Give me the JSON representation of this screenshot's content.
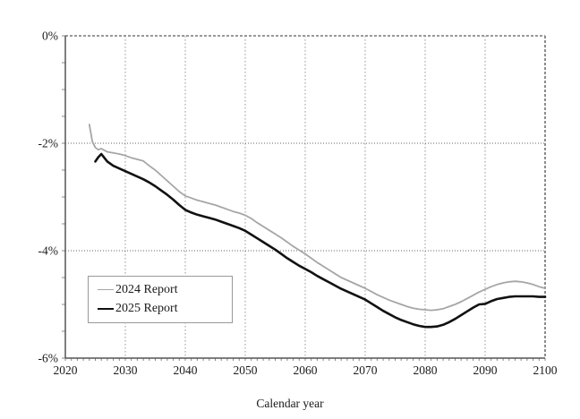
{
  "figure": {
    "background": "#ffffff",
    "xlabel": "Calendar year"
  },
  "chart_data": {
    "type": "line",
    "title": "",
    "xlabel": "Calendar year",
    "ylabel": "",
    "xlim": [
      2020,
      2100
    ],
    "ylim": [
      -6,
      0
    ],
    "x_ticks": [
      2020,
      2030,
      2040,
      2050,
      2060,
      2070,
      2080,
      2090,
      2100
    ],
    "x_minor_step": 1,
    "y_ticks": [
      {
        "value": 0,
        "label": "0%"
      },
      {
        "value": -2,
        "label": "-2%"
      },
      {
        "value": -4,
        "label": "-4%"
      },
      {
        "value": -6,
        "label": "-6%"
      }
    ],
    "y_minor_step": 0.5,
    "grid": {
      "vertical_color": "#b3b3b3",
      "horizontal_color": "#666666",
      "top_border_color": "#999999",
      "right_border_color": "#8c8c8c",
      "axis_color": "#555555",
      "tick_color": "#888888"
    },
    "legend_position": "lower-left",
    "series": [
      {
        "name": "2024 Report",
        "color": "#a6a6a6",
        "stroke_width": 1.8,
        "points": [
          [
            2024,
            -1.65
          ],
          [
            2024.5,
            -1.97
          ],
          [
            2025,
            -2.08
          ],
          [
            2025.5,
            -2.12
          ],
          [
            2026,
            -2.1
          ],
          [
            2026.5,
            -2.13
          ],
          [
            2027,
            -2.16
          ],
          [
            2028,
            -2.18
          ],
          [
            2029,
            -2.2
          ],
          [
            2030,
            -2.23
          ],
          [
            2031,
            -2.27
          ],
          [
            2032,
            -2.3
          ],
          [
            2033,
            -2.33
          ],
          [
            2034,
            -2.42
          ],
          [
            2035,
            -2.5
          ],
          [
            2036,
            -2.6
          ],
          [
            2037,
            -2.7
          ],
          [
            2038,
            -2.8
          ],
          [
            2039,
            -2.9
          ],
          [
            2040,
            -2.98
          ],
          [
            2041,
            -3.02
          ],
          [
            2042,
            -3.06
          ],
          [
            2043,
            -3.09
          ],
          [
            2044,
            -3.12
          ],
          [
            2045,
            -3.15
          ],
          [
            2046,
            -3.19
          ],
          [
            2047,
            -3.23
          ],
          [
            2048,
            -3.27
          ],
          [
            2049,
            -3.3
          ],
          [
            2050,
            -3.34
          ],
          [
            2051,
            -3.4
          ],
          [
            2052,
            -3.48
          ],
          [
            2053,
            -3.55
          ],
          [
            2054,
            -3.62
          ],
          [
            2055,
            -3.69
          ],
          [
            2056,
            -3.76
          ],
          [
            2057,
            -3.84
          ],
          [
            2058,
            -3.92
          ],
          [
            2059,
            -3.99
          ],
          [
            2060,
            -4.06
          ],
          [
            2061,
            -4.14
          ],
          [
            2062,
            -4.22
          ],
          [
            2063,
            -4.29
          ],
          [
            2064,
            -4.36
          ],
          [
            2065,
            -4.43
          ],
          [
            2066,
            -4.5
          ],
          [
            2067,
            -4.55
          ],
          [
            2068,
            -4.6
          ],
          [
            2069,
            -4.65
          ],
          [
            2070,
            -4.7
          ],
          [
            2071,
            -4.76
          ],
          [
            2072,
            -4.82
          ],
          [
            2073,
            -4.87
          ],
          [
            2074,
            -4.92
          ],
          [
            2075,
            -4.96
          ],
          [
            2076,
            -5.0
          ],
          [
            2077,
            -5.04
          ],
          [
            2078,
            -5.07
          ],
          [
            2079,
            -5.09
          ],
          [
            2080,
            -5.1
          ],
          [
            2081,
            -5.11
          ],
          [
            2082,
            -5.1
          ],
          [
            2083,
            -5.08
          ],
          [
            2084,
            -5.04
          ],
          [
            2085,
            -5.0
          ],
          [
            2086,
            -4.95
          ],
          [
            2087,
            -4.89
          ],
          [
            2088,
            -4.83
          ],
          [
            2089,
            -4.77
          ],
          [
            2090,
            -4.72
          ],
          [
            2091,
            -4.67
          ],
          [
            2092,
            -4.63
          ],
          [
            2093,
            -4.6
          ],
          [
            2094,
            -4.58
          ],
          [
            2095,
            -4.57
          ],
          [
            2096,
            -4.58
          ],
          [
            2097,
            -4.6
          ],
          [
            2098,
            -4.63
          ],
          [
            2099,
            -4.67
          ],
          [
            2100,
            -4.7
          ]
        ]
      },
      {
        "name": "2025 Report",
        "color": "#111111",
        "stroke_width": 2.6,
        "points": [
          [
            2025,
            -2.34
          ],
          [
            2025.5,
            -2.26
          ],
          [
            2026,
            -2.2
          ],
          [
            2026.5,
            -2.27
          ],
          [
            2027,
            -2.34
          ],
          [
            2028,
            -2.42
          ],
          [
            2029,
            -2.47
          ],
          [
            2030,
            -2.52
          ],
          [
            2031,
            -2.57
          ],
          [
            2032,
            -2.62
          ],
          [
            2033,
            -2.67
          ],
          [
            2034,
            -2.73
          ],
          [
            2035,
            -2.8
          ],
          [
            2036,
            -2.88
          ],
          [
            2037,
            -2.96
          ],
          [
            2038,
            -3.05
          ],
          [
            2039,
            -3.15
          ],
          [
            2040,
            -3.24
          ],
          [
            2041,
            -3.29
          ],
          [
            2042,
            -3.33
          ],
          [
            2043,
            -3.36
          ],
          [
            2044,
            -3.39
          ],
          [
            2045,
            -3.42
          ],
          [
            2046,
            -3.46
          ],
          [
            2047,
            -3.5
          ],
          [
            2048,
            -3.54
          ],
          [
            2049,
            -3.58
          ],
          [
            2050,
            -3.63
          ],
          [
            2051,
            -3.7
          ],
          [
            2052,
            -3.77
          ],
          [
            2053,
            -3.84
          ],
          [
            2054,
            -3.91
          ],
          [
            2055,
            -3.98
          ],
          [
            2056,
            -4.06
          ],
          [
            2057,
            -4.14
          ],
          [
            2058,
            -4.21
          ],
          [
            2059,
            -4.28
          ],
          [
            2060,
            -4.34
          ],
          [
            2061,
            -4.4
          ],
          [
            2062,
            -4.47
          ],
          [
            2063,
            -4.53
          ],
          [
            2064,
            -4.59
          ],
          [
            2065,
            -4.65
          ],
          [
            2066,
            -4.71
          ],
          [
            2067,
            -4.76
          ],
          [
            2068,
            -4.81
          ],
          [
            2069,
            -4.86
          ],
          [
            2070,
            -4.91
          ],
          [
            2071,
            -4.98
          ],
          [
            2072,
            -5.05
          ],
          [
            2073,
            -5.12
          ],
          [
            2074,
            -5.18
          ],
          [
            2075,
            -5.24
          ],
          [
            2076,
            -5.29
          ],
          [
            2077,
            -5.33
          ],
          [
            2078,
            -5.37
          ],
          [
            2079,
            -5.4
          ],
          [
            2080,
            -5.42
          ],
          [
            2081,
            -5.42
          ],
          [
            2082,
            -5.41
          ],
          [
            2083,
            -5.38
          ],
          [
            2084,
            -5.33
          ],
          [
            2085,
            -5.27
          ],
          [
            2086,
            -5.2
          ],
          [
            2087,
            -5.13
          ],
          [
            2088,
            -5.06
          ],
          [
            2089,
            -5.0
          ],
          [
            2090,
            -4.99
          ],
          [
            2091,
            -4.94
          ],
          [
            2092,
            -4.9
          ],
          [
            2093,
            -4.88
          ],
          [
            2094,
            -4.86
          ],
          [
            2095,
            -4.85
          ],
          [
            2096,
            -4.85
          ],
          [
            2097,
            -4.85
          ],
          [
            2098,
            -4.85
          ],
          [
            2099,
            -4.86
          ],
          [
            2100,
            -4.86
          ]
        ]
      }
    ]
  }
}
